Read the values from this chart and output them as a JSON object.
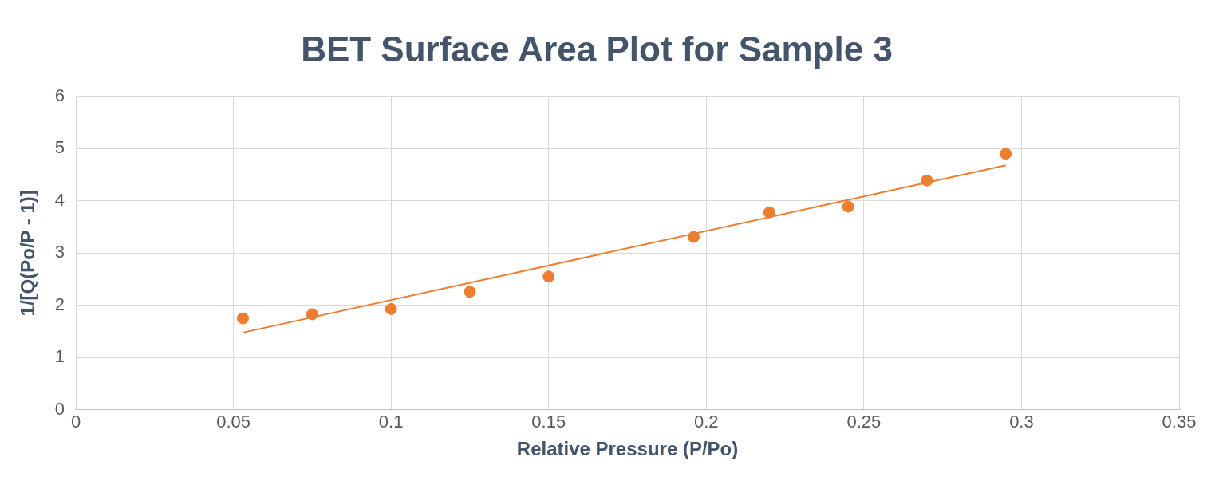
{
  "chart_data": {
    "type": "scatter",
    "title": "BET Surface Area Plot for Sample 3",
    "xlabel": "Relative Pressure (P/Po)",
    "ylabel": "1/[Q(Po/P - 1)]",
    "xlim": [
      0,
      0.35
    ],
    "ylim": [
      0,
      6
    ],
    "xticks": [
      0,
      0.05,
      0.1,
      0.15,
      0.2,
      0.25,
      0.3,
      0.35
    ],
    "yticks": [
      0,
      1,
      2,
      3,
      4,
      5,
      6
    ],
    "grid": true,
    "legend": false,
    "series": [
      {
        "marker": "circle",
        "color": "#ed7d31",
        "x": [
          0.053,
          0.075,
          0.1,
          0.125,
          0.15,
          0.196,
          0.22,
          0.245,
          0.27,
          0.295
        ],
        "values": [
          1.75,
          1.83,
          1.93,
          2.26,
          2.55,
          3.31,
          3.78,
          3.89,
          4.39,
          4.9
        ]
      },
      {
        "type": "line",
        "marker": "none",
        "color": "#ed7d31",
        "x": [
          0.053,
          0.295
        ],
        "values": [
          1.48,
          4.68
        ]
      }
    ]
  }
}
